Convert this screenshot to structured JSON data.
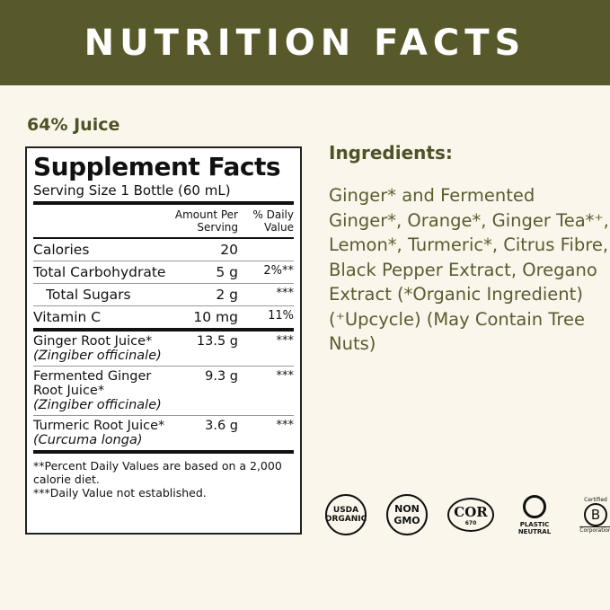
{
  "banner": {
    "title": "NUTRITION FACTS"
  },
  "juice_label": "64% Juice",
  "panel": {
    "title": "Supplement Facts",
    "serving": "Serving Size 1 Bottle (60 mL)",
    "col_amount": "Amount Per Serving",
    "col_dv": "% Daily Value",
    "rows": [
      {
        "name": "Calories",
        "amount": "20",
        "dv": ""
      },
      {
        "name": "Total Carbohydrate",
        "amount": "5 g",
        "dv": "2%**"
      },
      {
        "name": "Total Sugars",
        "amount": "2 g",
        "dv": "***"
      },
      {
        "name": "Vitamin C",
        "amount": "10 mg",
        "dv": "11%"
      },
      {
        "name": "Ginger Root Juice*",
        "latin": "(Zingiber officinale)",
        "amount": "13.5 g",
        "dv": "***"
      },
      {
        "name": "Fermented Ginger Root Juice*",
        "latin": "(Zingiber officinale)",
        "amount": "9.3 g",
        "dv": "***"
      },
      {
        "name": "Turmeric Root Juice*",
        "latin": "(Curcuma longa)",
        "amount": "3.6 g",
        "dv": "***"
      }
    ],
    "footnote1": "**Percent Daily Values are based on a 2,000 calorie diet.",
    "footnote2": "***Daily Value not established."
  },
  "ingredients": {
    "heading": "Ingredients:",
    "text": "Ginger* and Fermented Ginger*, Orange*, Ginger Tea*⁺, Lemon*, Turmeric*, Citrus Fibre, Black Pepper Extract, Oregano Extract (*Organic Ingredient) (⁺Upcycle) (May Contain Tree Nuts)"
  },
  "logos": {
    "usda": "USDA ORGANIC",
    "nongmo": "NON GMO",
    "cor": "COR",
    "cor_num": "670",
    "plastic": "PLASTIC NEUTRAL",
    "bcorp_top": "Certified",
    "bcorp": "B",
    "bcorp_bottom": "Corporation"
  }
}
